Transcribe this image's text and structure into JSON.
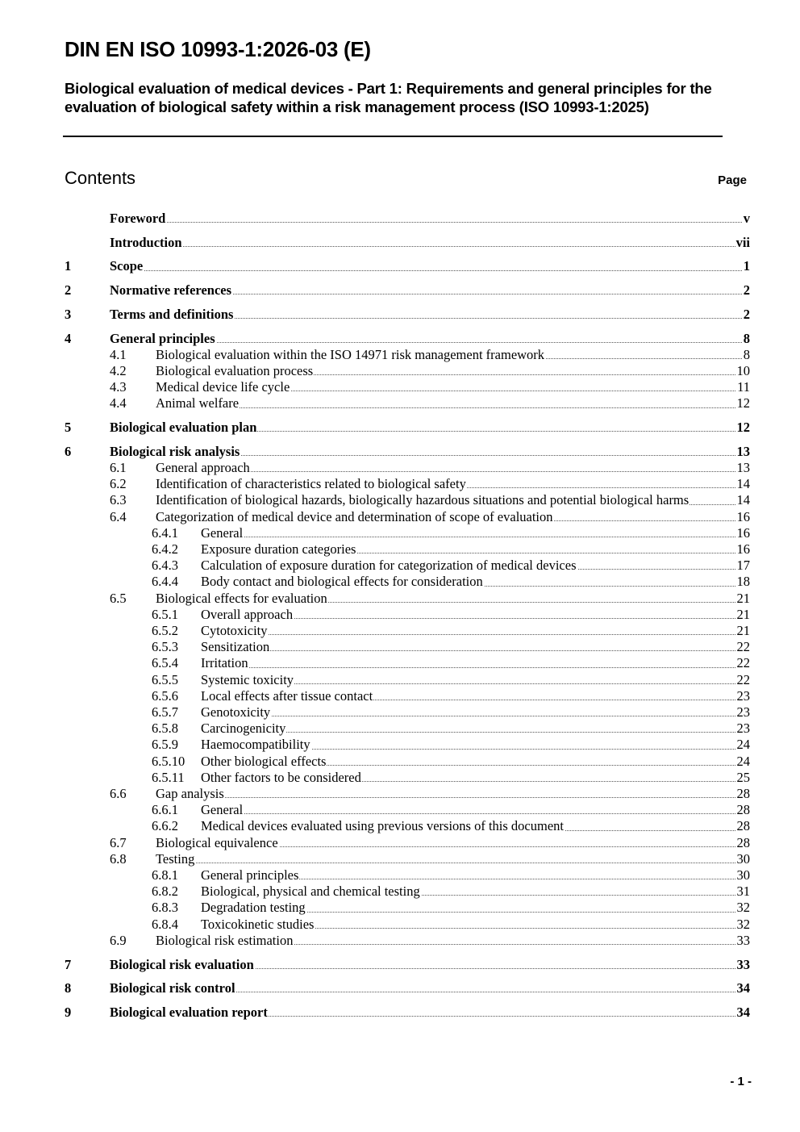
{
  "header": {
    "title": "DIN EN ISO 10993-1:2026-03 (E)",
    "subtitle": "Biological evaluation of medical devices - Part 1: Requirements and general principles for the evaluation of biological safety within a risk management process (ISO 10993-1:2025)"
  },
  "contents": {
    "heading": "Contents",
    "page_label": "Page",
    "entries": [
      {
        "level": 1,
        "number": "",
        "title": "Foreword",
        "page": "v"
      },
      {
        "level": 1,
        "number": "",
        "title": "Introduction",
        "page": "vii"
      },
      {
        "level": 1,
        "number": "1",
        "title": "Scope",
        "page": "1"
      },
      {
        "level": 1,
        "number": "2",
        "title": "Normative references",
        "page": "2"
      },
      {
        "level": 1,
        "number": "3",
        "title": "Terms and definitions",
        "page": "2"
      },
      {
        "level": 1,
        "number": "4",
        "title": "General principles",
        "page": "8"
      },
      {
        "level": 2,
        "number": "4.1",
        "title": "Biological evaluation within the ISO 14971 risk management framework",
        "page": "8"
      },
      {
        "level": 2,
        "number": "4.2",
        "title": "Biological evaluation process",
        "page": "10"
      },
      {
        "level": 2,
        "number": "4.3",
        "title": "Medical device life cycle",
        "page": "11"
      },
      {
        "level": 2,
        "number": "4.4",
        "title": "Animal welfare",
        "page": "12"
      },
      {
        "level": 1,
        "number": "5",
        "title": "Biological evaluation plan",
        "page": "12"
      },
      {
        "level": 1,
        "number": "6",
        "title": "Biological risk analysis",
        "page": "13"
      },
      {
        "level": 2,
        "number": "6.1",
        "title": "General approach",
        "page": "13"
      },
      {
        "level": 2,
        "number": "6.2",
        "title": "Identification of characteristics related to biological safety",
        "page": "14"
      },
      {
        "level": 2,
        "number": "6.3",
        "title": "Identification of biological hazards, biologically hazardous situations and potential biological harms",
        "page": "14",
        "wrap": true
      },
      {
        "level": 2,
        "number": "6.4",
        "title": "Categorization of medical device and determination of scope of evaluation",
        "page": "16"
      },
      {
        "level": 3,
        "number": "6.4.1",
        "title": "General",
        "page": "16"
      },
      {
        "level": 3,
        "number": "6.4.2",
        "title": "Exposure duration categories",
        "page": "16"
      },
      {
        "level": 3,
        "number": "6.4.3",
        "title": "Calculation of exposure duration for categorization of medical devices",
        "page": "17"
      },
      {
        "level": 3,
        "number": "6.4.4",
        "title": "Body contact and biological effects for consideration",
        "page": "18"
      },
      {
        "level": 2,
        "number": "6.5",
        "title": "Biological effects for evaluation",
        "page": "21"
      },
      {
        "level": 3,
        "number": "6.5.1",
        "title": "Overall approach",
        "page": "21"
      },
      {
        "level": 3,
        "number": "6.5.2",
        "title": "Cytotoxicity",
        "page": "21"
      },
      {
        "level": 3,
        "number": "6.5.3",
        "title": "Sensitization",
        "page": "22"
      },
      {
        "level": 3,
        "number": "6.5.4",
        "title": "Irritation",
        "page": "22"
      },
      {
        "level": 3,
        "number": "6.5.5",
        "title": "Systemic toxicity",
        "page": "22"
      },
      {
        "level": 3,
        "number": "6.5.6",
        "title": "Local effects after tissue contact",
        "page": "23"
      },
      {
        "level": 3,
        "number": "6.5.7",
        "title": "Genotoxicity",
        "page": "23"
      },
      {
        "level": 3,
        "number": "6.5.8",
        "title": "Carcinogenicity",
        "page": "23"
      },
      {
        "level": 3,
        "number": "6.5.9",
        "title": "Haemocompatibility",
        "page": "24"
      },
      {
        "level": 3,
        "number": "6.5.10",
        "title": "Other biological effects",
        "page": "24"
      },
      {
        "level": 3,
        "number": "6.5.11",
        "title": "Other factors to be considered",
        "page": "25"
      },
      {
        "level": 2,
        "number": "6.6",
        "title": "Gap analysis",
        "page": "28"
      },
      {
        "level": 3,
        "number": "6.6.1",
        "title": "General",
        "page": "28"
      },
      {
        "level": 3,
        "number": "6.6.2",
        "title": "Medical devices evaluated using previous versions of this document",
        "page": "28"
      },
      {
        "level": 2,
        "number": "6.7",
        "title": "Biological equivalence",
        "page": "28"
      },
      {
        "level": 2,
        "number": "6.8",
        "title": "Testing",
        "page": "30"
      },
      {
        "level": 3,
        "number": "6.8.1",
        "title": "General principles",
        "page": "30"
      },
      {
        "level": 3,
        "number": "6.8.2",
        "title": "Biological, physical and chemical testing",
        "page": "31"
      },
      {
        "level": 3,
        "number": "6.8.3",
        "title": "Degradation testing",
        "page": "32"
      },
      {
        "level": 3,
        "number": "6.8.4",
        "title": "Toxicokinetic studies",
        "page": "32"
      },
      {
        "level": 2,
        "number": "6.9",
        "title": "Biological risk estimation",
        "page": "33"
      },
      {
        "level": 1,
        "number": "7",
        "title": "Biological risk evaluation",
        "page": "33"
      },
      {
        "level": 1,
        "number": "8",
        "title": "Biological risk control",
        "page": "34"
      },
      {
        "level": 1,
        "number": "9",
        "title": "Biological evaluation report",
        "page": "34"
      }
    ]
  },
  "footer": {
    "page_number": "- 1 -"
  }
}
